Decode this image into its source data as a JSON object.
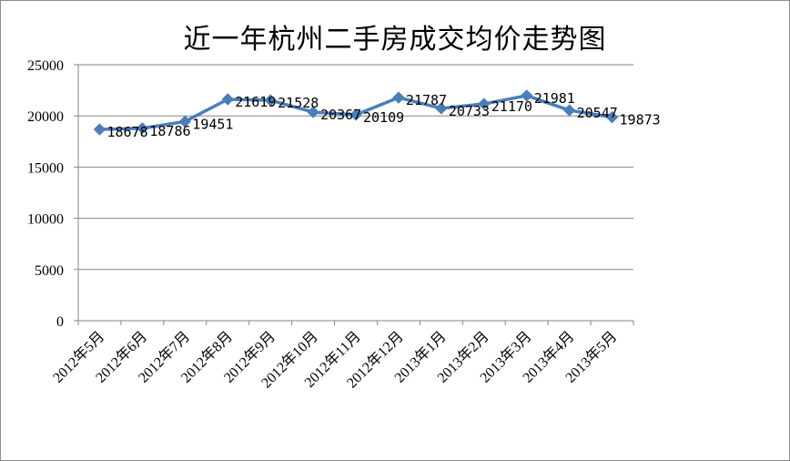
{
  "chart_data": {
    "type": "line",
    "title": "近一年杭州二手房成交均价走势图",
    "xlabel": "",
    "ylabel": "",
    "categories": [
      "2012年5月",
      "2012年6月",
      "2012年7月",
      "2012年8月",
      "2012年9月",
      "2012年10月",
      "2012年11月",
      "2012年12月",
      "2013年1月",
      "2013年2月",
      "2013年3月",
      "2013年4月",
      "2013年5月"
    ],
    "series": [
      {
        "values": [
          18678,
          18786,
          19451,
          21619,
          21528,
          20367,
          20109,
          21787,
          20733,
          21170,
          21981,
          20547,
          19873
        ]
      }
    ],
    "data_labels": [
      "18678",
      "18786",
      "19451",
      "21619",
      "21528",
      "20367",
      "20109",
      "21787",
      "20733",
      "21170",
      "21981",
      "20547",
      "19873"
    ],
    "ylim": [
      0,
      25000
    ],
    "yticks": [
      "0",
      "5000",
      "10000",
      "15000",
      "20000",
      "25000"
    ],
    "grid": true,
    "legend": "none",
    "colors": {
      "line": "#4a7ebb",
      "grid": "#868686",
      "axis": "#868686"
    }
  }
}
